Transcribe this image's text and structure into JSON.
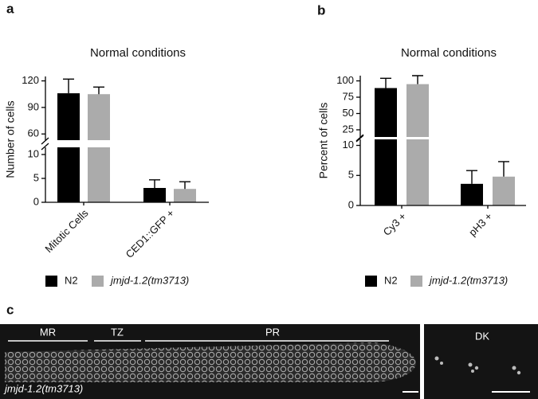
{
  "panels": [
    "a",
    "b",
    "c"
  ],
  "chart_data": [
    {
      "type": "bar",
      "title": "Normal conditions",
      "y_label": "Number of cells",
      "categories": [
        "Mitotic Cells",
        "CED1::GFP +"
      ],
      "series": [
        {
          "name": "N2",
          "color": "#000000",
          "values": [
            106,
            3
          ],
          "errors": [
            16,
            1.7
          ]
        },
        {
          "name": "jmjd-1.2(tm3713)",
          "color": "#ababab",
          "values": [
            105,
            2.8
          ],
          "errors": [
            8,
            1.5
          ]
        }
      ],
      "ylim": [
        0,
        125
      ],
      "ybreak": [
        11.5,
        53
      ],
      "yticks": [
        0,
        5,
        10,
        60,
        90,
        120
      ]
    },
    {
      "type": "bar",
      "title": "Normal conditions",
      "y_label": "Percent of cells",
      "categories": [
        "Cy3 +",
        "pH3 +"
      ],
      "series": [
        {
          "name": "N2",
          "color": "#000000",
          "values": [
            89,
            3.6
          ],
          "errors": [
            15,
            2.2
          ]
        },
        {
          "name": "jmjd-1.2(tm3713)",
          "color": "#ababab",
          "values": [
            95,
            4.8
          ],
          "errors": [
            13,
            2.5
          ]
        }
      ],
      "ylim": [
        0,
        108
      ],
      "ybreak": [
        11,
        14
      ],
      "yticks": [
        0,
        5,
        10,
        25,
        50,
        75,
        100
      ]
    }
  ],
  "image": {
    "regions": [
      "MR",
      "TZ",
      "PR"
    ],
    "strain": "jmjd-1.2(tm3713)",
    "inset_label": "DK"
  }
}
